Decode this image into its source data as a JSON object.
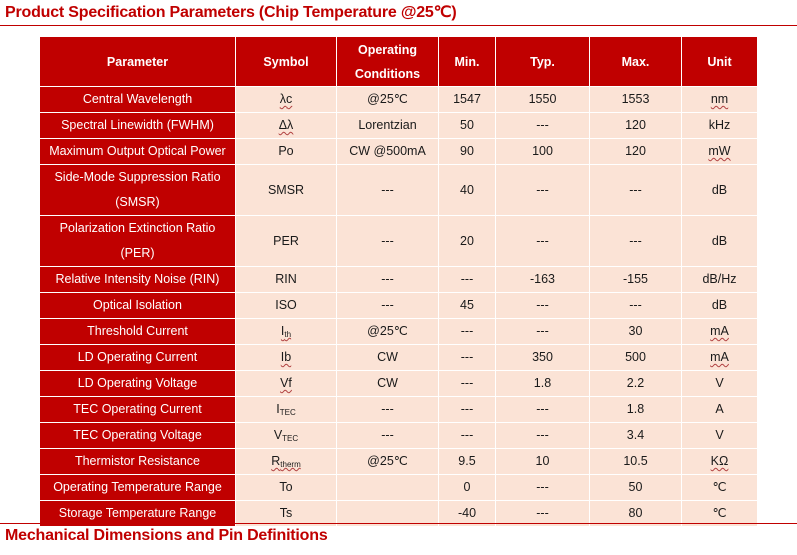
{
  "headings": {
    "spec": "Product Specification Parameters (Chip Temperature @25℃)",
    "mechanical": "Mechanical Dimensions and Pin Definitions"
  },
  "table": {
    "headers": {
      "parameter": "Parameter",
      "symbol": "Symbol",
      "conditions_line1": "Operating",
      "conditions_line2": "Conditions",
      "min": "Min.",
      "typ": "Typ.",
      "max": "Max.",
      "unit": "Unit"
    },
    "rows": [
      {
        "parameter": "Central Wavelength",
        "symbol": "λc",
        "conditions": "@25℃",
        "min": "1547",
        "typ": "1550",
        "max": "1553",
        "unit": "nm"
      },
      {
        "parameter": "Spectral Linewidth (FWHM)",
        "symbol": "Δλ",
        "conditions": "Lorentzian",
        "min": "50",
        "typ": "---",
        "max": "120",
        "unit": "kHz"
      },
      {
        "parameter": "Maximum Output Optical Power",
        "symbol": "Po",
        "conditions": "CW @500mA",
        "min": "90",
        "typ": "100",
        "max": "120",
        "unit": "mW"
      },
      {
        "parameter_line1": "Side-Mode Suppression Ratio",
        "parameter_line2": "(SMSR)",
        "symbol": "SMSR",
        "conditions": "---",
        "min": "40",
        "typ": "---",
        "max": "---",
        "unit": "dB"
      },
      {
        "parameter_line1": "Polarization Extinction Ratio",
        "parameter_line2": "(PER)",
        "symbol": "PER",
        "conditions": "---",
        "min": "20",
        "typ": "---",
        "max": "---",
        "unit": "dB"
      },
      {
        "parameter": "Relative Intensity Noise (RIN)",
        "symbol": "RIN",
        "conditions": "---",
        "min": "---",
        "typ": "-163",
        "max": "-155",
        "unit": "dB/Hz"
      },
      {
        "parameter": "Optical Isolation",
        "symbol": "ISO",
        "conditions": "---",
        "min": "45",
        "typ": "---",
        "max": "---",
        "unit": "dB"
      },
      {
        "parameter": "Threshold Current",
        "symbol_main": "I",
        "symbol_sub": "th",
        "conditions": "@25℃",
        "min": "---",
        "typ": "---",
        "max": "30",
        "unit": "mA"
      },
      {
        "parameter": "LD Operating Current",
        "symbol": "Ib",
        "conditions": "CW",
        "min": "---",
        "typ": "350",
        "max": "500",
        "unit": "mA"
      },
      {
        "parameter": "LD Operating Voltage",
        "symbol": "Vf",
        "conditions": "CW",
        "min": "---",
        "typ": "1.8",
        "max": "2.2",
        "unit": "V"
      },
      {
        "parameter": "TEC Operating Current",
        "symbol_main": "I",
        "symbol_sub": "TEC",
        "conditions": "---",
        "min": "---",
        "typ": "---",
        "max": "1.8",
        "unit": "A"
      },
      {
        "parameter": "TEC Operating Voltage",
        "symbol_main": "V",
        "symbol_sub": "TEC",
        "conditions": "---",
        "min": "---",
        "typ": "---",
        "max": "3.4",
        "unit": "V"
      },
      {
        "parameter": "Thermistor Resistance",
        "symbol_main": "R",
        "symbol_sub": "therm",
        "conditions": "@25℃",
        "min": "9.5",
        "typ": "10",
        "max": "10.5",
        "unit": "KΩ"
      },
      {
        "parameter": "Operating Temperature Range",
        "symbol": "To",
        "conditions": "",
        "min": "0",
        "typ": "---",
        "max": "50",
        "unit": "℃"
      },
      {
        "parameter": "Storage Temperature Range",
        "symbol": "Ts",
        "conditions": "",
        "min": "-40",
        "typ": "---",
        "max": "80",
        "unit": "℃"
      }
    ]
  },
  "colors": {
    "header_red": "#c00000",
    "value_cell_pink": "#fbe3d6",
    "heading_text": "#c00000"
  }
}
